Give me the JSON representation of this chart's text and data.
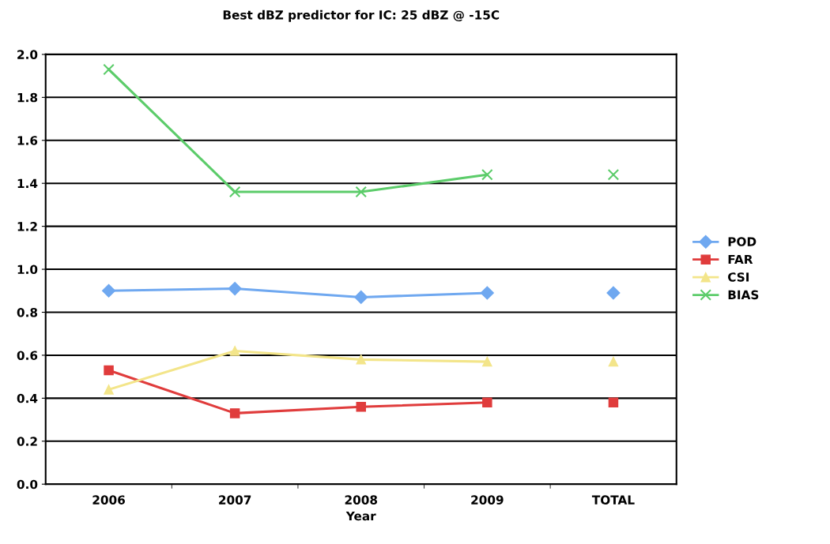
{
  "chart_data": {
    "type": "line",
    "title": "Best dBZ predictor for IC: 25 dBZ @ -15C",
    "xlabel": "Year",
    "categories": [
      "2006",
      "2007",
      "2008",
      "2009",
      "TOTAL"
    ],
    "series": [
      {
        "name": "POD",
        "color": "#6fa8f0",
        "marker": "diamond",
        "values": [
          0.9,
          0.91,
          0.87,
          0.89,
          null
        ]
      },
      {
        "name": "FAR",
        "color": "#e03c3c",
        "marker": "square",
        "values": [
          0.53,
          0.33,
          0.36,
          0.38,
          null
        ]
      },
      {
        "name": "CSI",
        "color": "#f3e58a",
        "marker": "triangle",
        "values": [
          0.44,
          0.62,
          0.58,
          0.57,
          null
        ]
      },
      {
        "name": "BIAS",
        "color": "#5ccc6a",
        "marker": "cross",
        "values": [
          1.93,
          1.36,
          1.36,
          1.44,
          null
        ]
      },
      {
        "type": "scatter",
        "color": "#6fa8f0",
        "marker": "diamond",
        "values": [
          null,
          null,
          null,
          null,
          0.89
        ]
      },
      {
        "type": "scatter",
        "color": "#e03c3c",
        "marker": "square",
        "values": [
          null,
          null,
          null,
          null,
          0.38
        ]
      },
      {
        "type": "scatter",
        "color": "#f3e58a",
        "marker": "triangle",
        "values": [
          null,
          null,
          null,
          null,
          0.57
        ]
      },
      {
        "type": "scatter",
        "color": "#5ccc6a",
        "marker": "cross",
        "values": [
          null,
          null,
          null,
          null,
          1.44
        ]
      }
    ],
    "ylim": [
      0,
      2.0
    ],
    "yticks": [
      {
        "value": 0,
        "label": "0.0"
      },
      0.2,
      0.4,
      0.6,
      0.8,
      {
        "value": 1.0,
        "label": "1.0"
      },
      1.2,
      1.4,
      1.6,
      1.8,
      {
        "value": 2.0,
        "label": "2.0"
      }
    ],
    "grid": "y",
    "legend": "right"
  }
}
